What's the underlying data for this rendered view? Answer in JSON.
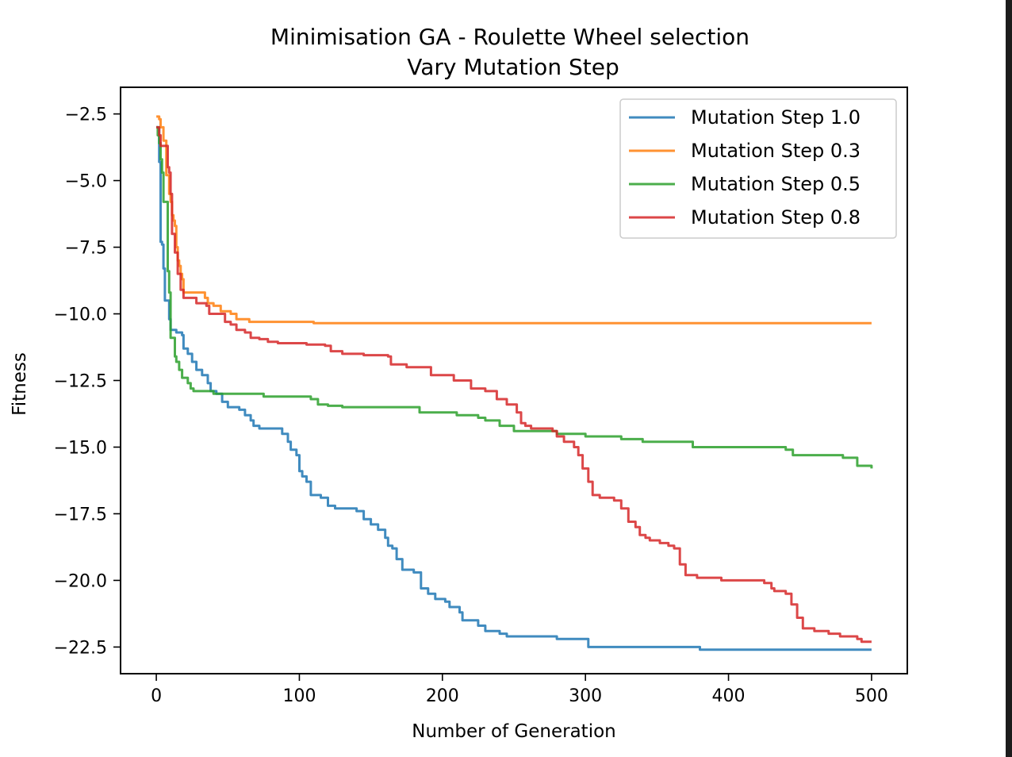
{
  "chart_data": {
    "type": "line",
    "title": "Minimisation GA - Roulette Wheel selection",
    "subtitle": "Vary Mutation Step",
    "xlabel": "Number of Generation",
    "ylabel": "Fitness",
    "xlim": [
      -25,
      525
    ],
    "ylim": [
      -23.5,
      -1.5
    ],
    "xticks": [
      0,
      100,
      200,
      300,
      400,
      500
    ],
    "yticks": [
      -22.5,
      -20.0,
      -17.5,
      -15.0,
      -12.5,
      -10.0,
      -7.5,
      -5.0,
      -2.5
    ],
    "xtick_labels": [
      "0",
      "100",
      "200",
      "300",
      "400",
      "500"
    ],
    "ytick_labels": [
      "−22.5",
      "−20.0",
      "−17.5",
      "−15.0",
      "−12.5",
      "−10.0",
      "−7.5",
      "−5.0",
      "−2.5"
    ],
    "grid": false,
    "legend_position": "top-right",
    "series": [
      {
        "name": "Mutation Step 1.0",
        "color": "#1f77b4",
        "points": [
          [
            0,
            -3.0
          ],
          [
            2,
            -4.3
          ],
          [
            3,
            -7.3
          ],
          [
            4,
            -7.4
          ],
          [
            5,
            -8.3
          ],
          [
            6,
            -9.5
          ],
          [
            8,
            -9.5
          ],
          [
            9,
            -10.2
          ],
          [
            10,
            -10.6
          ],
          [
            14,
            -10.7
          ],
          [
            18,
            -10.8
          ],
          [
            19,
            -11.3
          ],
          [
            22,
            -11.5
          ],
          [
            25,
            -11.8
          ],
          [
            28,
            -12.1
          ],
          [
            32,
            -12.3
          ],
          [
            36,
            -12.6
          ],
          [
            38,
            -12.9
          ],
          [
            42,
            -13.0
          ],
          [
            46,
            -13.3
          ],
          [
            50,
            -13.5
          ],
          [
            58,
            -13.6
          ],
          [
            62,
            -13.8
          ],
          [
            66,
            -14.0
          ],
          [
            68,
            -14.2
          ],
          [
            72,
            -14.3
          ],
          [
            85,
            -14.3
          ],
          [
            88,
            -14.5
          ],
          [
            92,
            -14.8
          ],
          [
            94,
            -15.1
          ],
          [
            98,
            -15.3
          ],
          [
            100,
            -15.9
          ],
          [
            102,
            -16.1
          ],
          [
            105,
            -16.3
          ],
          [
            108,
            -16.8
          ],
          [
            115,
            -16.9
          ],
          [
            120,
            -17.2
          ],
          [
            125,
            -17.3
          ],
          [
            140,
            -17.4
          ],
          [
            145,
            -17.7
          ],
          [
            150,
            -17.9
          ],
          [
            155,
            -18.1
          ],
          [
            160,
            -18.4
          ],
          [
            162,
            -18.7
          ],
          [
            165,
            -18.8
          ],
          [
            168,
            -19.2
          ],
          [
            172,
            -19.6
          ],
          [
            180,
            -19.7
          ],
          [
            185,
            -20.3
          ],
          [
            190,
            -20.5
          ],
          [
            195,
            -20.7
          ],
          [
            202,
            -20.8
          ],
          [
            205,
            -21.0
          ],
          [
            212,
            -21.2
          ],
          [
            214,
            -21.5
          ],
          [
            225,
            -21.7
          ],
          [
            230,
            -21.9
          ],
          [
            240,
            -22.0
          ],
          [
            245,
            -22.1
          ],
          [
            270,
            -22.1
          ],
          [
            280,
            -22.2
          ],
          [
            300,
            -22.2
          ],
          [
            302,
            -22.5
          ],
          [
            360,
            -22.5
          ],
          [
            380,
            -22.6
          ],
          [
            500,
            -22.6
          ]
        ]
      },
      {
        "name": "Mutation Step 0.3",
        "color": "#ff7f0e",
        "points": [
          [
            0,
            -2.6
          ],
          [
            2,
            -2.7
          ],
          [
            3,
            -3.0
          ],
          [
            5,
            -3.5
          ],
          [
            7,
            -4.8
          ],
          [
            9,
            -5.5
          ],
          [
            10,
            -5.8
          ],
          [
            11,
            -6.3
          ],
          [
            12,
            -6.5
          ],
          [
            13,
            -6.7
          ],
          [
            14,
            -7.5
          ],
          [
            15,
            -8.0
          ],
          [
            16,
            -8.2
          ],
          [
            17,
            -8.5
          ],
          [
            18,
            -8.7
          ],
          [
            19,
            -9.2
          ],
          [
            30,
            -9.2
          ],
          [
            34,
            -9.4
          ],
          [
            36,
            -9.6
          ],
          [
            40,
            -9.7
          ],
          [
            45,
            -9.9
          ],
          [
            52,
            -10.0
          ],
          [
            56,
            -10.2
          ],
          [
            65,
            -10.3
          ],
          [
            100,
            -10.3
          ],
          [
            110,
            -10.35
          ],
          [
            160,
            -10.35
          ],
          [
            260,
            -10.35
          ],
          [
            500,
            -10.35
          ]
        ]
      },
      {
        "name": "Mutation Step 0.5",
        "color": "#2ca02c",
        "points": [
          [
            0,
            -3.0
          ],
          [
            1,
            -3.3
          ],
          [
            2,
            -3.6
          ],
          [
            3,
            -4.2
          ],
          [
            4,
            -4.7
          ],
          [
            5,
            -5.8
          ],
          [
            7,
            -5.8
          ],
          [
            8,
            -8.4
          ],
          [
            9,
            -9.2
          ],
          [
            10,
            -10.9
          ],
          [
            12,
            -10.9
          ],
          [
            13,
            -11.6
          ],
          [
            14,
            -11.8
          ],
          [
            16,
            -12.1
          ],
          [
            18,
            -12.4
          ],
          [
            22,
            -12.6
          ],
          [
            24,
            -12.8
          ],
          [
            26,
            -12.9
          ],
          [
            35,
            -12.9
          ],
          [
            40,
            -13.0
          ],
          [
            60,
            -13.0
          ],
          [
            75,
            -13.1
          ],
          [
            95,
            -13.1
          ],
          [
            108,
            -13.2
          ],
          [
            113,
            -13.4
          ],
          [
            120,
            -13.45
          ],
          [
            130,
            -13.5
          ],
          [
            182,
            -13.5
          ],
          [
            184,
            -13.7
          ],
          [
            200,
            -13.7
          ],
          [
            210,
            -13.8
          ],
          [
            225,
            -13.9
          ],
          [
            230,
            -14.0
          ],
          [
            240,
            -14.2
          ],
          [
            250,
            -14.4
          ],
          [
            280,
            -14.5
          ],
          [
            300,
            -14.6
          ],
          [
            320,
            -14.6
          ],
          [
            325,
            -14.7
          ],
          [
            340,
            -14.8
          ],
          [
            370,
            -14.8
          ],
          [
            375,
            -15.0
          ],
          [
            410,
            -15.0
          ],
          [
            440,
            -15.1
          ],
          [
            445,
            -15.3
          ],
          [
            480,
            -15.4
          ],
          [
            490,
            -15.7
          ],
          [
            498,
            -15.7
          ],
          [
            500,
            -15.8
          ]
        ]
      },
      {
        "name": "Mutation Step 0.8",
        "color": "#d62728",
        "points": [
          [
            0,
            -3.0
          ],
          [
            2,
            -3.3
          ],
          [
            3,
            -3.7
          ],
          [
            7,
            -3.7
          ],
          [
            8,
            -4.5
          ],
          [
            9,
            -4.7
          ],
          [
            10,
            -5.5
          ],
          [
            11,
            -7.0
          ],
          [
            13,
            -7.7
          ],
          [
            15,
            -8.5
          ],
          [
            17,
            -9.1
          ],
          [
            19,
            -9.4
          ],
          [
            24,
            -9.4
          ],
          [
            28,
            -9.6
          ],
          [
            35,
            -9.7
          ],
          [
            37,
            -10.0
          ],
          [
            45,
            -10.0
          ],
          [
            48,
            -10.3
          ],
          [
            52,
            -10.4
          ],
          [
            56,
            -10.6
          ],
          [
            62,
            -10.7
          ],
          [
            66,
            -10.9
          ],
          [
            72,
            -10.95
          ],
          [
            78,
            -11.05
          ],
          [
            85,
            -11.1
          ],
          [
            90,
            -11.1
          ],
          [
            105,
            -11.15
          ],
          [
            118,
            -11.2
          ],
          [
            122,
            -11.4
          ],
          [
            130,
            -11.5
          ],
          [
            145,
            -11.55
          ],
          [
            162,
            -11.6
          ],
          [
            164,
            -11.9
          ],
          [
            175,
            -12.0
          ],
          [
            185,
            -12.0
          ],
          [
            192,
            -12.3
          ],
          [
            200,
            -12.3
          ],
          [
            208,
            -12.5
          ],
          [
            215,
            -12.5
          ],
          [
            220,
            -12.8
          ],
          [
            230,
            -12.9
          ],
          [
            238,
            -13.2
          ],
          [
            245,
            -13.4
          ],
          [
            252,
            -13.7
          ],
          [
            255,
            -14.1
          ],
          [
            258,
            -14.2
          ],
          [
            262,
            -14.3
          ],
          [
            275,
            -14.3
          ],
          [
            277,
            -14.4
          ],
          [
            280,
            -14.6
          ],
          [
            285,
            -14.8
          ],
          [
            292,
            -15.0
          ],
          [
            295,
            -15.3
          ],
          [
            298,
            -15.8
          ],
          [
            302,
            -16.3
          ],
          [
            305,
            -16.8
          ],
          [
            310,
            -16.9
          ],
          [
            320,
            -17.0
          ],
          [
            325,
            -17.3
          ],
          [
            330,
            -17.8
          ],
          [
            335,
            -18.0
          ],
          [
            338,
            -18.3
          ],
          [
            342,
            -18.4
          ],
          [
            345,
            -18.5
          ],
          [
            352,
            -18.6
          ],
          [
            358,
            -18.7
          ],
          [
            362,
            -18.8
          ],
          [
            366,
            -19.4
          ],
          [
            370,
            -19.8
          ],
          [
            378,
            -19.9
          ],
          [
            385,
            -19.9
          ],
          [
            395,
            -20.0
          ],
          [
            415,
            -20.0
          ],
          [
            425,
            -20.1
          ],
          [
            430,
            -20.3
          ],
          [
            432,
            -20.4
          ],
          [
            440,
            -20.5
          ],
          [
            444,
            -20.9
          ],
          [
            448,
            -21.4
          ],
          [
            452,
            -21.8
          ],
          [
            460,
            -21.9
          ],
          [
            470,
            -22.0
          ],
          [
            478,
            -22.1
          ],
          [
            485,
            -22.1
          ],
          [
            490,
            -22.2
          ],
          [
            493,
            -22.3
          ],
          [
            500,
            -22.3
          ]
        ]
      }
    ]
  }
}
